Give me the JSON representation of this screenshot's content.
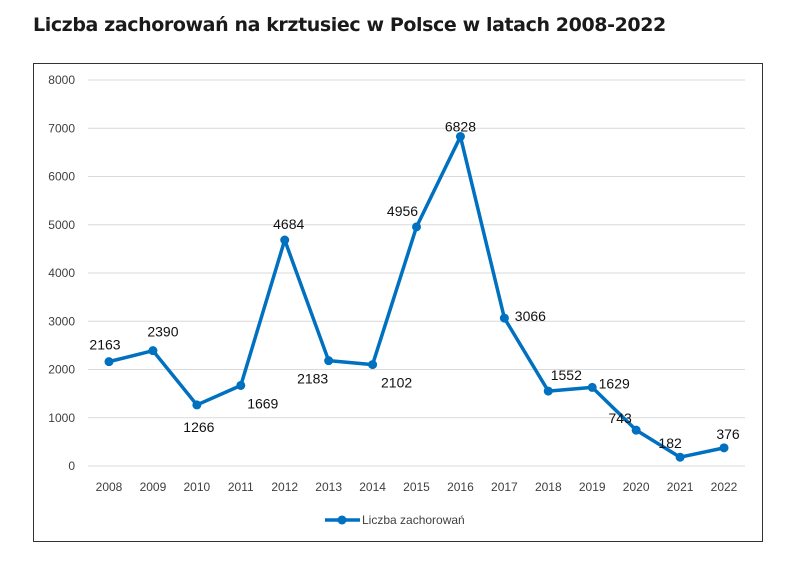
{
  "chart_data": {
    "type": "line",
    "title": "Liczba zachorowań na krztusiec w Polsce w latach 2008-2022",
    "x": [
      "2008",
      "2009",
      "2010",
      "2011",
      "2012",
      "2013",
      "2014",
      "2015",
      "2016",
      "2017",
      "2018",
      "2019",
      "2020",
      "2021",
      "2022"
    ],
    "series": [
      {
        "name": "Liczba zachorowań",
        "values": [
          2163,
          2390,
          1266,
          1669,
          4684,
          2183,
          2102,
          4956,
          6828,
          3066,
          1552,
          1629,
          743,
          182,
          376
        ],
        "color": "#0070C0"
      }
    ],
    "yticks": [
      0,
      1000,
      2000,
      3000,
      4000,
      5000,
      6000,
      7000,
      8000
    ],
    "ylim": [
      0,
      8000
    ],
    "grid": true,
    "legend": "bottom",
    "data_labels": true
  }
}
